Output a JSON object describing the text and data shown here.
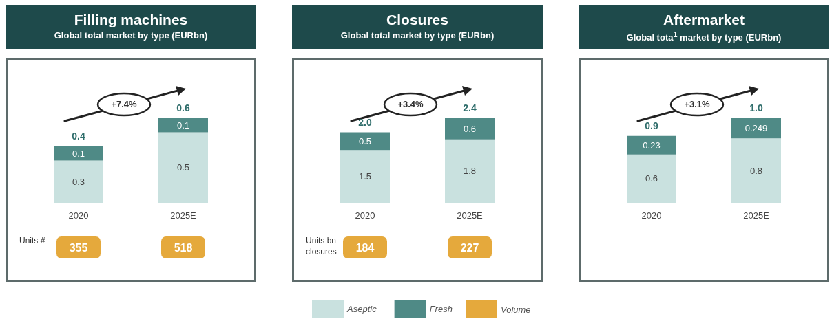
{
  "chart_data": [
    {
      "type": "bar",
      "title": "Filling machines",
      "subtitle": "Global total market by type (EURbn)",
      "categories": [
        "2020",
        "2025E"
      ],
      "stacked": true,
      "data_labels": true,
      "totals": [
        "0.4",
        "0.6"
      ],
      "annotations": [
        "+7.4%"
      ],
      "series": [
        {
          "color": "#c9e1df",
          "values": [
            0.3,
            0.5
          ]
        },
        {
          "color": "#4f8a86",
          "values": [
            0.1,
            0.1
          ]
        }
      ]
    },
    {
      "type": "other",
      "data_labels": true,
      "annotations": [
        "Units #"
      ],
      "series": [
        {
          "color": "#e5a93c",
          "values": [
            355,
            518
          ]
        }
      ]
    },
    {
      "type": "bar",
      "title": "Closures",
      "subtitle": "Global total market by type (EURbn)",
      "categories": [
        "2020",
        "2025E"
      ],
      "stacked": true,
      "data_labels": true,
      "totals": [
        "2.0",
        "2.4"
      ],
      "annotations": [
        "+3.4%"
      ],
      "legend": "bottom",
      "series": [
        {
          "name": "Aseptic",
          "color": "#c9e1df",
          "values": [
            1.5,
            1.8
          ]
        },
        {
          "name": "Fresh",
          "color": "#4f8a86",
          "values": [
            0.5,
            0.6
          ]
        }
      ]
    },
    {
      "type": "other",
      "data_labels": true,
      "annotations": [
        "Units bn closures"
      ],
      "legend": "bottom",
      "series": [
        {
          "name": "Volume",
          "color": "#e5a93c",
          "values": [
            184,
            227
          ]
        }
      ]
    },
    {
      "type": "bar",
      "title": "Aftermarket",
      "subtitle": "Global tota$^{1}$ market by type (EURbn)",
      "categories": [
        "2020",
        "2025E"
      ],
      "stacked": true,
      "data_labels": true,
      "totals": [
        "0.9",
        "1.0"
      ],
      "annotations": [
        "+3.1%"
      ],
      "series": [
        {
          "color": "#c9e1df",
          "values": [
            0.6,
            0.8
          ]
        },
        {
          "color": "#4f8a86",
          "values": [
            0.23,
            0.249
          ]
        }
      ]
    }
  ]
}
